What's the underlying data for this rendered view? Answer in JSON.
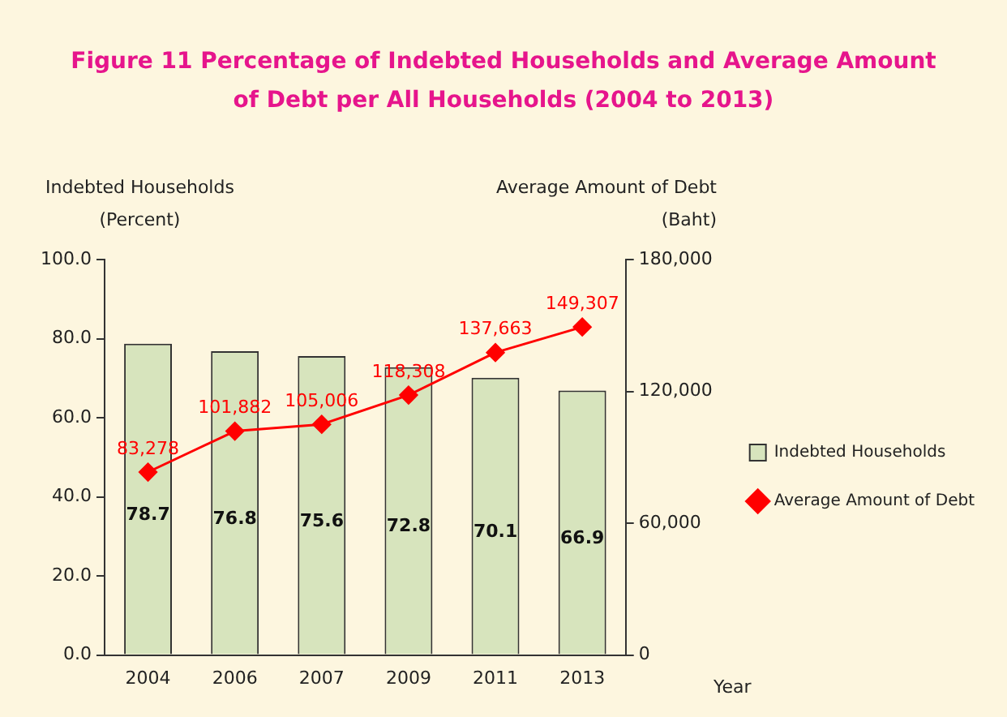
{
  "chart_data": {
    "type": "bar",
    "title": "Figure   11   Percentage of Indebted Households and Average Amount\nof Debt per All Households  (2004 to 2013)",
    "xlabel": "Year",
    "ylabel": "Indebted Households\n(Percent)",
    "y2label": "Average Amount of Debt\n(Baht)",
    "categories": [
      "2004",
      "2006",
      "2007",
      "2009",
      "2011",
      "2013"
    ],
    "series": [
      {
        "name": "Indebted Households",
        "color": "#d7e4bd",
        "values": [
          78.7,
          76.8,
          75.6,
          72.8,
          70.1,
          66.9
        ],
        "value_labels": [
          "78.7",
          "76.8",
          "75.6",
          "72.8",
          "70.1",
          "66.9"
        ]
      },
      {
        "name": "Average Amount of Debt",
        "type": "line",
        "axis": "y2",
        "color": "#ff0000",
        "marker": "diamond",
        "values": [
          83278,
          101882,
          105006,
          118308,
          137663,
          149307
        ],
        "value_labels": [
          "83,278",
          "101,882",
          "105,006",
          "118,308",
          "137,663",
          "149,307"
        ]
      }
    ],
    "ylim": [
      0,
      100
    ],
    "yticks": [
      {
        "value": 0,
        "label": "0.0"
      },
      {
        "value": 20,
        "label": "20.0"
      },
      {
        "value": 40,
        "label": "40.0"
      },
      {
        "value": 60,
        "label": "60.0"
      },
      {
        "value": 80,
        "label": "80.0"
      },
      {
        "value": 100,
        "label": "100.0"
      }
    ],
    "y2lim": [
      0,
      180000
    ],
    "y2ticks": [
      {
        "value": 0,
        "label": "0"
      },
      {
        "value": 60000,
        "label": "60,000"
      },
      {
        "value": 120000,
        "label": "120,000"
      },
      {
        "value": 180000,
        "label": "180,000"
      }
    ],
    "grid": false,
    "legend": "right"
  }
}
